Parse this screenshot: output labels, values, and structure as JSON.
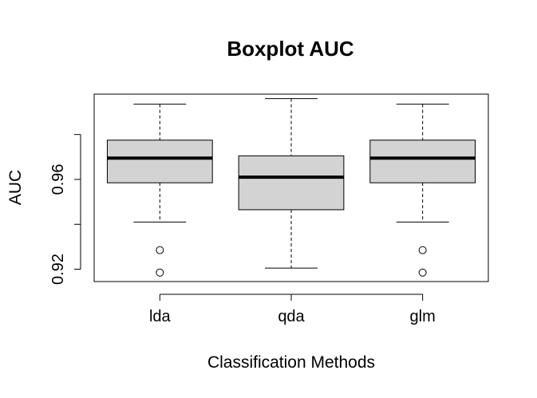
{
  "chart_data": {
    "type": "boxplot",
    "title": "Boxplot AUC",
    "xlabel": "Classification Methods",
    "ylabel": "AUC",
    "ylim": [
      0.9145,
      0.998
    ],
    "yticks": [
      0.92,
      0.96
    ],
    "y_minor_ticks": [
      0.94,
      0.98
    ],
    "box_fill": "#d3d3d3",
    "grid": false,
    "categories": [
      "lda",
      "qda",
      "glm"
    ],
    "boxes": [
      {
        "name": "lda",
        "whisker_low": 0.941,
        "q1": 0.9585,
        "median": 0.9695,
        "q3": 0.9775,
        "whisker_high": 0.9935,
        "outliers": [
          0.9285,
          0.9185
        ]
      },
      {
        "name": "qda",
        "whisker_low": 0.9205,
        "q1": 0.9465,
        "median": 0.961,
        "q3": 0.9705,
        "whisker_high": 0.996,
        "outliers": []
      },
      {
        "name": "glm",
        "whisker_low": 0.941,
        "q1": 0.9585,
        "median": 0.9695,
        "q3": 0.9775,
        "whisker_high": 0.9935,
        "outliers": [
          0.9285,
          0.9185
        ]
      }
    ]
  }
}
